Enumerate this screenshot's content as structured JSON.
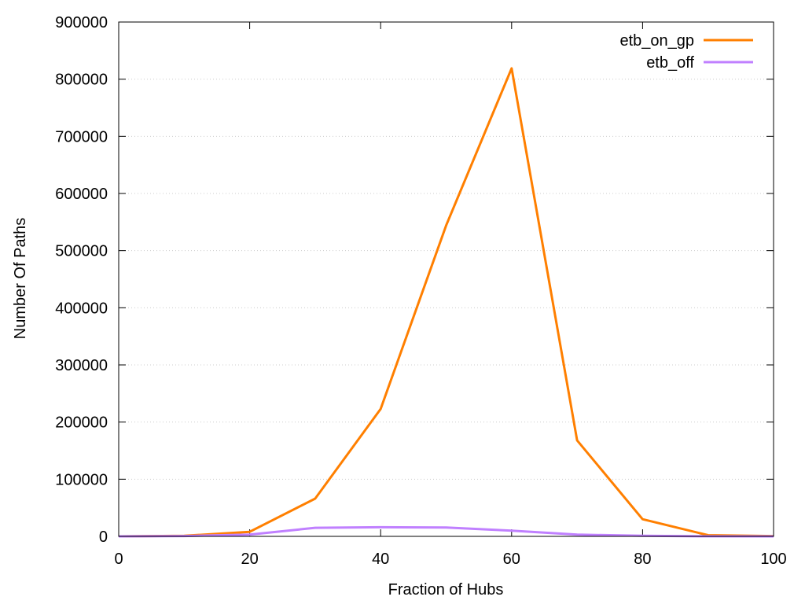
{
  "chart_data": {
    "type": "line",
    "title": "",
    "xlabel": "Fraction of Hubs",
    "ylabel": "Number Of Paths",
    "xlim": [
      0,
      100
    ],
    "ylim": [
      0,
      900000
    ],
    "x_ticks": [
      0,
      20,
      40,
      60,
      80,
      100
    ],
    "y_ticks": [
      0,
      100000,
      200000,
      300000,
      400000,
      500000,
      600000,
      700000,
      800000,
      900000
    ],
    "grid": "horizontal dotted",
    "legend": "top-right",
    "x": [
      0,
      10,
      20,
      30,
      40,
      50,
      60,
      70,
      80,
      90,
      100
    ],
    "series": [
      {
        "name": "etb_on_gp",
        "color": "#ff7f00",
        "values": [
          0,
          1000,
          8000,
          66000,
          223000,
          544000,
          819000,
          168000,
          30000,
          2000,
          500
        ]
      },
      {
        "name": "etb_off",
        "color": "#c080ff",
        "values": [
          0,
          500,
          3000,
          15000,
          16000,
          15500,
          10000,
          3000,
          1000,
          200,
          0
        ]
      }
    ]
  }
}
